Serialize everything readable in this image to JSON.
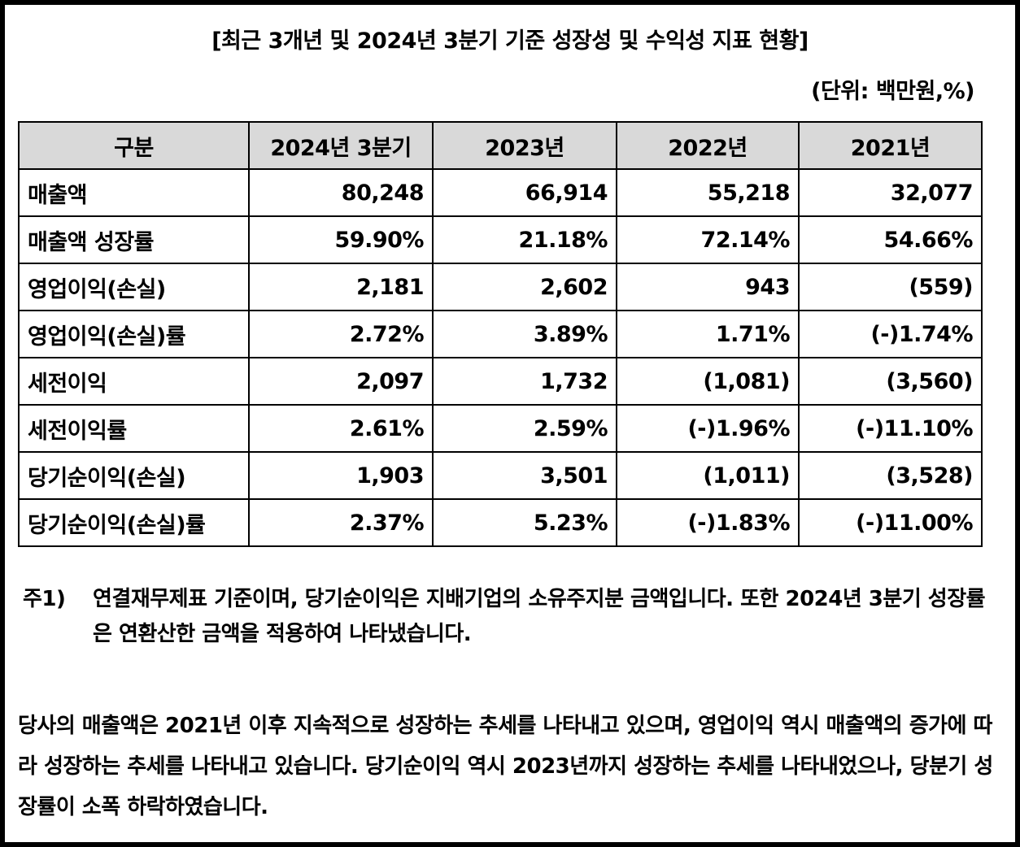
{
  "document": {
    "title": "[최근 3개년 및 2024년 3분기 기준 성장성 및 수익성 지표 현황]",
    "unit": "(단위: 백만원,%)"
  },
  "table": {
    "headers": [
      "구분",
      "2024년 3분기",
      "2023년",
      "2022년",
      "2021년"
    ],
    "rows": [
      {
        "label": "매출액",
        "values": [
          "80,248",
          "66,914",
          "55,218",
          "32,077"
        ]
      },
      {
        "label": "매출액 성장률",
        "values": [
          "59.90%",
          "21.18%",
          "72.14%",
          "54.66%"
        ]
      },
      {
        "label": "영업이익(손실)",
        "values": [
          "2,181",
          "2,602",
          "943",
          "(559)"
        ]
      },
      {
        "label": "영업이익(손실)률",
        "values": [
          "2.72%",
          "3.89%",
          "1.71%",
          "(-)1.74%"
        ]
      },
      {
        "label": "세전이익",
        "values": [
          "2,097",
          "1,732",
          "(1,081)",
          "(3,560)"
        ]
      },
      {
        "label": "세전이익률",
        "values": [
          "2.61%",
          "2.59%",
          "(-)1.96%",
          "(-)11.10%"
        ]
      },
      {
        "label": "당기순이익(손실)",
        "values": [
          "1,903",
          "3,501",
          "(1,011)",
          "(3,528)"
        ]
      },
      {
        "label": "당기순이익(손실)률",
        "values": [
          "2.37%",
          "5.23%",
          "(-)1.83%",
          "(-)11.00%"
        ]
      }
    ]
  },
  "footnote": {
    "marker": "주1)",
    "text": "연결재무제표 기준이며, 당기순이익은 지배기업의 소유주지분 금액입니다. 또한 2024년 3분기 성장률은 연환산한 금액을 적용하여 나타냈습니다."
  },
  "paragraph": "당사의 매출액은 2021년 이후 지속적으로 성장하는 추세를 나타내고 있으며, 영업이익 역시 매출액의 증가에 따라 성장하는 추세를 나타내고 있습니다. 당기순이익 역시 2023년까지 성장하는 추세를 나타내었으나, 당분기 성장률이 소폭 하락하였습니다."
}
